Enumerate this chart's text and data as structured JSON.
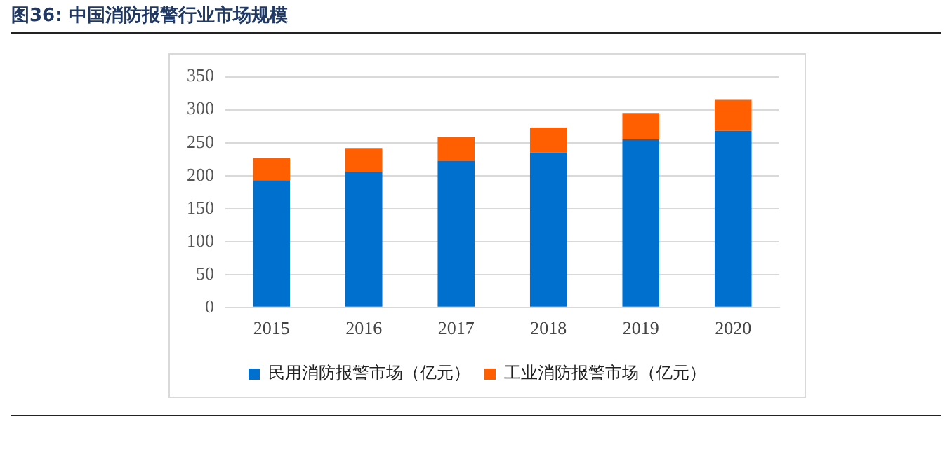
{
  "chart_data": {
    "type": "bar",
    "title": "图36:  中国消防报警行业市场规模",
    "categories": [
      "2015",
      "2016",
      "2017",
      "2018",
      "2019",
      "2020"
    ],
    "stacked": true,
    "series": [
      {
        "name": "民用消防报警市场（亿元）",
        "color": "#0070ce",
        "values": [
          193,
          206,
          222,
          235,
          255,
          268
        ]
      },
      {
        "name": "工业消防报警市场（亿元）",
        "color": "#ff5f00",
        "values": [
          34,
          36,
          37,
          38,
          40,
          47
        ]
      }
    ],
    "ylim": [
      0,
      350
    ],
    "yticks": [
      0,
      50,
      100,
      150,
      200,
      250,
      300,
      350
    ],
    "grid": "y",
    "legend": "bottom"
  }
}
